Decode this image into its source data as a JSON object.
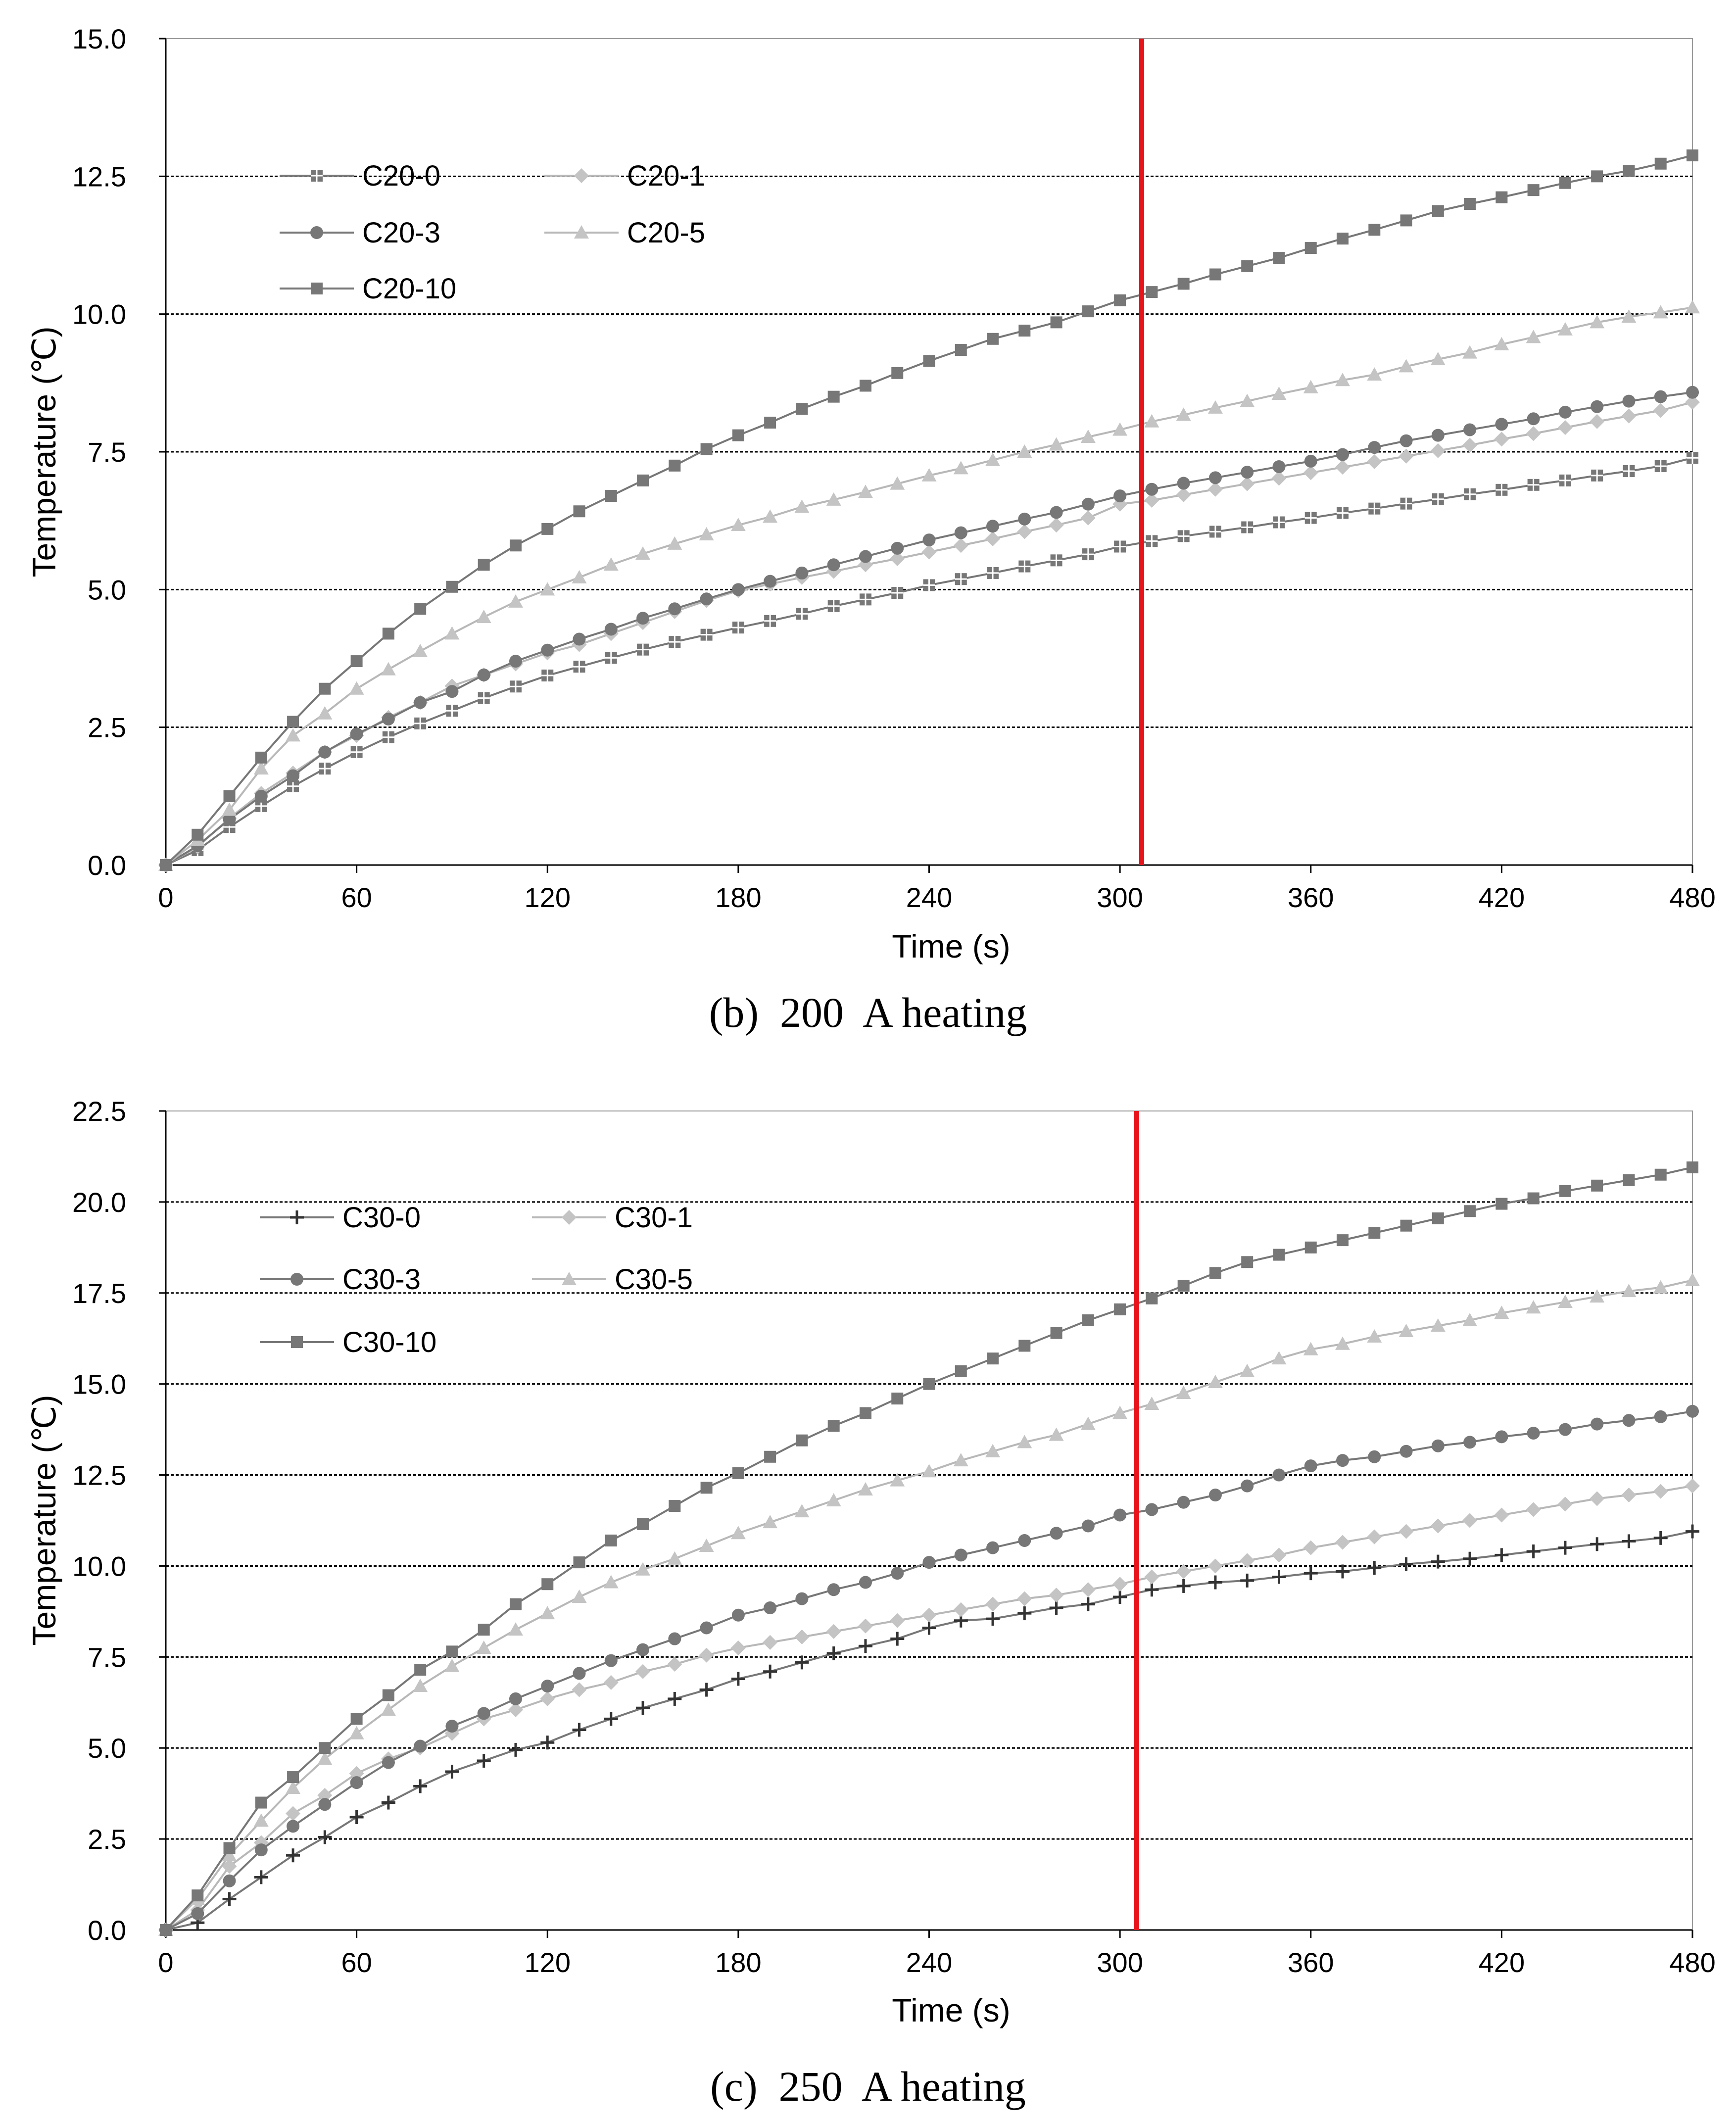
{
  "colors": {
    "dark": "#777777",
    "light": "#b8b8b8",
    "marker_light": "#c4c4c4",
    "cursor": "#e8141b",
    "grid": "#000000",
    "axis": "#000000"
  },
  "chart_data": [
    {
      "type": "line",
      "caption": "(b)  200  A heating",
      "xlabel": "Time (s)",
      "ylabel": "Temperature (℃)",
      "xlim": [
        0,
        480
      ],
      "ylim": [
        0,
        15
      ],
      "xticks": [
        0,
        60,
        120,
        180,
        240,
        300,
        360,
        420,
        480
      ],
      "xtick_labels": [
        "0",
        "60",
        "120",
        "180",
        "240",
        "300",
        "360",
        "420",
        "480"
      ],
      "yticks": [
        0,
        2.5,
        5,
        7.5,
        10,
        12.5,
        15
      ],
      "ytick_labels": [
        "0.0",
        "2.5",
        "5.0",
        "7.5",
        "10.0",
        "12.5",
        "15.0"
      ],
      "gridlines": [
        2.5,
        5,
        7.5,
        10,
        12.5
      ],
      "vertical_line_x": 307,
      "legend_position": "top-left",
      "x": [
        0,
        10,
        20,
        30,
        40,
        50,
        60,
        70,
        80,
        90,
        100,
        110,
        120,
        130,
        140,
        150,
        160,
        170,
        180,
        190,
        200,
        210,
        220,
        230,
        240,
        250,
        260,
        270,
        280,
        290,
        300,
        310,
        320,
        330,
        340,
        350,
        360,
        370,
        380,
        390,
        400,
        410,
        420,
        430,
        440,
        450,
        460,
        470,
        480
      ],
      "series": [
        {
          "name": "C20-0",
          "marker": "square-plus",
          "color": "dark",
          "values": [
            0,
            0.27,
            0.69,
            1.07,
            1.43,
            1.75,
            2.05,
            2.32,
            2.57,
            2.8,
            3.03,
            3.24,
            3.44,
            3.6,
            3.76,
            3.91,
            4.05,
            4.18,
            4.31,
            4.43,
            4.56,
            4.7,
            4.82,
            4.94,
            5.08,
            5.19,
            5.3,
            5.42,
            5.53,
            5.64,
            5.78,
            5.88,
            5.97,
            6.05,
            6.13,
            6.22,
            6.3,
            6.39,
            6.47,
            6.56,
            6.64,
            6.73,
            6.81,
            6.9,
            6.98,
            7.07,
            7.15,
            7.24,
            7.39
          ]
        },
        {
          "name": "C20-1",
          "marker": "diamond",
          "color": "light",
          "values": [
            0,
            0.33,
            0.85,
            1.3,
            1.67,
            2.05,
            2.35,
            2.68,
            2.95,
            3.25,
            3.45,
            3.65,
            3.85,
            4.0,
            4.2,
            4.4,
            4.6,
            4.8,
            4.98,
            5.1,
            5.22,
            5.33,
            5.45,
            5.56,
            5.68,
            5.8,
            5.92,
            6.05,
            6.17,
            6.3,
            6.55,
            6.62,
            6.72,
            6.82,
            6.92,
            7.02,
            7.12,
            7.22,
            7.32,
            7.42,
            7.52,
            7.62,
            7.73,
            7.83,
            7.94,
            8.05,
            8.15,
            8.25,
            8.4
          ]
        },
        {
          "name": "C20-3",
          "marker": "circle",
          "color": "dark",
          "values": [
            0,
            0.35,
            0.83,
            1.25,
            1.62,
            2.05,
            2.38,
            2.65,
            2.95,
            3.15,
            3.45,
            3.7,
            3.9,
            4.1,
            4.28,
            4.48,
            4.65,
            4.83,
            5.0,
            5.15,
            5.3,
            5.45,
            5.6,
            5.75,
            5.9,
            6.03,
            6.15,
            6.28,
            6.4,
            6.55,
            6.7,
            6.82,
            6.93,
            7.03,
            7.13,
            7.23,
            7.33,
            7.45,
            7.58,
            7.7,
            7.8,
            7.9,
            8.0,
            8.1,
            8.22,
            8.32,
            8.42,
            8.5,
            8.58
          ]
        },
        {
          "name": "C20-5",
          "marker": "triangle",
          "color": "light",
          "values": [
            0,
            0.45,
            1.0,
            1.75,
            2.35,
            2.75,
            3.2,
            3.55,
            3.88,
            4.2,
            4.5,
            4.78,
            5.0,
            5.22,
            5.45,
            5.65,
            5.83,
            6.0,
            6.17,
            6.32,
            6.5,
            6.63,
            6.77,
            6.92,
            7.07,
            7.2,
            7.35,
            7.5,
            7.63,
            7.77,
            7.9,
            8.05,
            8.17,
            8.3,
            8.42,
            8.55,
            8.67,
            8.8,
            8.9,
            9.05,
            9.18,
            9.3,
            9.45,
            9.58,
            9.72,
            9.85,
            9.95,
            10.03,
            10.12
          ]
        },
        {
          "name": "C20-10",
          "marker": "square",
          "color": "dark",
          "values": [
            0,
            0.55,
            1.25,
            1.95,
            2.6,
            3.2,
            3.7,
            4.2,
            4.65,
            5.05,
            5.45,
            5.8,
            6.1,
            6.42,
            6.7,
            6.98,
            7.25,
            7.55,
            7.8,
            8.03,
            8.28,
            8.5,
            8.7,
            8.93,
            9.15,
            9.35,
            9.55,
            9.7,
            9.85,
            10.05,
            10.25,
            10.4,
            10.55,
            10.72,
            10.87,
            11.02,
            11.2,
            11.37,
            11.53,
            11.7,
            11.87,
            12.0,
            12.12,
            12.25,
            12.38,
            12.5,
            12.6,
            12.73,
            12.88
          ]
        }
      ]
    },
    {
      "type": "line",
      "caption": "(c)  250  A heating",
      "xlabel": "Time (s)",
      "ylabel": "Temperature (℃)",
      "xlim": [
        0,
        480
      ],
      "ylim": [
        0,
        22.5
      ],
      "xticks": [
        0,
        60,
        120,
        180,
        240,
        300,
        360,
        420,
        480
      ],
      "xtick_labels": [
        "0",
        "60",
        "120",
        "180",
        "240",
        "300",
        "360",
        "420",
        "480"
      ],
      "yticks": [
        0,
        2.5,
        5,
        7.5,
        10,
        12.5,
        15,
        17.5,
        20,
        22.5
      ],
      "ytick_labels": [
        "0.0",
        "2.5",
        "5.0",
        "7.5",
        "10.0",
        "12.5",
        "15.0",
        "17.5",
        "20.0",
        "22.5"
      ],
      "gridlines": [
        2.5,
        5,
        7.5,
        10,
        12.5,
        15,
        17.5,
        20
      ],
      "vertical_line_x": 306,
      "legend_position": "top-left",
      "x": [
        0,
        10,
        20,
        30,
        40,
        50,
        60,
        70,
        80,
        90,
        100,
        110,
        120,
        130,
        140,
        150,
        160,
        170,
        180,
        190,
        200,
        210,
        220,
        230,
        240,
        250,
        260,
        270,
        280,
        290,
        300,
        310,
        320,
        330,
        340,
        350,
        360,
        370,
        380,
        390,
        400,
        410,
        420,
        430,
        440,
        450,
        460,
        470,
        480
      ],
      "series": [
        {
          "name": "C30-0",
          "marker": "plus",
          "color": "dark",
          "values": [
            0,
            0.2,
            0.85,
            1.45,
            2.05,
            2.55,
            3.1,
            3.5,
            3.95,
            4.35,
            4.65,
            4.95,
            5.15,
            5.5,
            5.8,
            6.1,
            6.35,
            6.6,
            6.9,
            7.1,
            7.35,
            7.6,
            7.8,
            8.0,
            8.3,
            8.5,
            8.55,
            8.7,
            8.85,
            8.95,
            9.15,
            9.35,
            9.45,
            9.55,
            9.6,
            9.7,
            9.8,
            9.85,
            9.95,
            10.05,
            10.12,
            10.2,
            10.3,
            10.4,
            10.5,
            10.6,
            10.68,
            10.77,
            10.95
          ]
        },
        {
          "name": "C30-1",
          "marker": "diamond",
          "color": "light",
          "values": [
            0,
            0.55,
            1.75,
            2.4,
            3.2,
            3.7,
            4.3,
            4.7,
            5.0,
            5.4,
            5.8,
            6.05,
            6.35,
            6.6,
            6.8,
            7.1,
            7.3,
            7.55,
            7.75,
            7.9,
            8.05,
            8.2,
            8.35,
            8.5,
            8.65,
            8.8,
            8.95,
            9.1,
            9.2,
            9.35,
            9.5,
            9.7,
            9.85,
            10.0,
            10.15,
            10.3,
            10.5,
            10.65,
            10.8,
            10.95,
            11.1,
            11.25,
            11.4,
            11.55,
            11.7,
            11.85,
            11.95,
            12.05,
            12.2
          ]
        },
        {
          "name": "C30-3",
          "marker": "circle",
          "color": "dark",
          "values": [
            0,
            0.45,
            1.35,
            2.2,
            2.85,
            3.45,
            4.05,
            4.6,
            5.05,
            5.6,
            5.95,
            6.35,
            6.7,
            7.05,
            7.4,
            7.7,
            8.0,
            8.3,
            8.65,
            8.85,
            9.1,
            9.35,
            9.55,
            9.8,
            10.1,
            10.3,
            10.5,
            10.7,
            10.9,
            11.1,
            11.4,
            11.55,
            11.75,
            11.95,
            12.2,
            12.5,
            12.75,
            12.9,
            13.0,
            13.15,
            13.3,
            13.4,
            13.55,
            13.65,
            13.75,
            13.9,
            14.0,
            14.1,
            14.25
          ]
        },
        {
          "name": "C30-5",
          "marker": "triangle",
          "color": "light",
          "values": [
            0,
            0.85,
            2.05,
            3.0,
            3.9,
            4.7,
            5.4,
            6.05,
            6.7,
            7.25,
            7.75,
            8.25,
            8.7,
            9.15,
            9.55,
            9.9,
            10.2,
            10.55,
            10.9,
            11.2,
            11.5,
            11.8,
            12.1,
            12.35,
            12.6,
            12.9,
            13.15,
            13.4,
            13.6,
            13.9,
            14.2,
            14.45,
            14.75,
            15.05,
            15.35,
            15.7,
            15.95,
            16.1,
            16.3,
            16.45,
            16.6,
            16.75,
            16.95,
            17.1,
            17.25,
            17.4,
            17.55,
            17.65,
            17.85
          ]
        },
        {
          "name": "C30-10",
          "marker": "square",
          "color": "dark",
          "values": [
            0,
            0.95,
            2.25,
            3.5,
            4.2,
            5.0,
            5.8,
            6.45,
            7.15,
            7.65,
            8.25,
            8.95,
            9.5,
            10.1,
            10.7,
            11.15,
            11.65,
            12.15,
            12.55,
            13.0,
            13.45,
            13.85,
            14.2,
            14.6,
            15.0,
            15.35,
            15.7,
            16.05,
            16.4,
            16.75,
            17.05,
            17.35,
            17.7,
            18.05,
            18.35,
            18.55,
            18.75,
            18.95,
            19.15,
            19.35,
            19.55,
            19.75,
            19.95,
            20.1,
            20.3,
            20.45,
            20.6,
            20.75,
            20.95
          ]
        }
      ]
    }
  ]
}
